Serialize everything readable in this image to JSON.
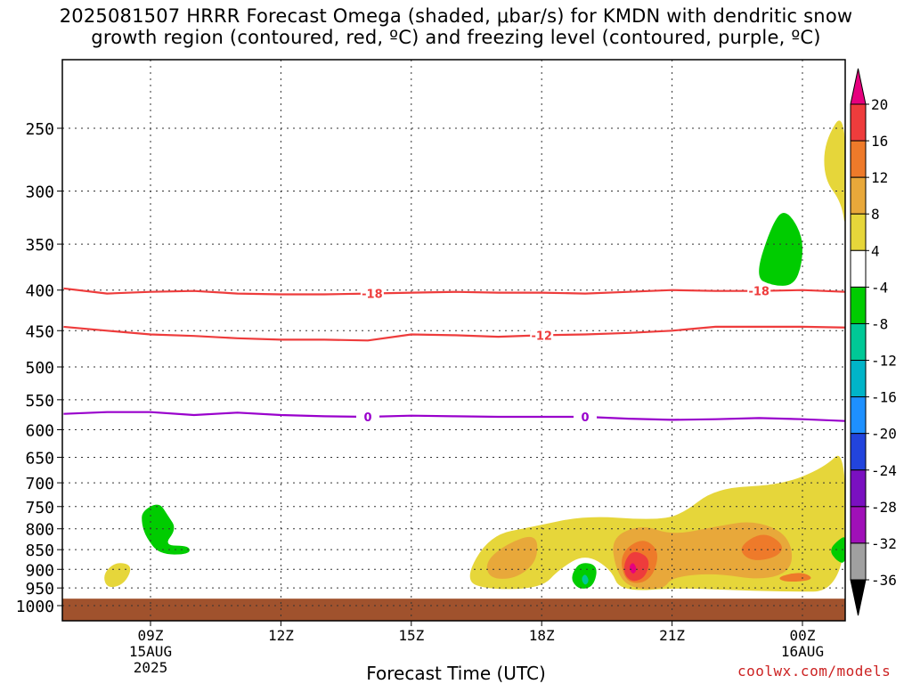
{
  "title": {
    "line1": "2025081507 HRRR Forecast Omega (shaded, μbar/s) for KMDN with dendritic snow",
    "line2": "growth region (contoured, red, ºC) and freezing level (contoured, purple, ºC)"
  },
  "credit": "coolwx.com/models",
  "chart_data": {
    "type": "heatmap",
    "title": "2025081507 HRRR Forecast Omega (shaded, μbar/s) for KMDN with dendritic snow growth region (contoured, red, ºC) and freezing level (contoured, purple, ºC)",
    "xlabel": "Forecast Time (UTC)",
    "ylabel": "",
    "x_range_hours_utc": [
      7,
      25
    ],
    "y_range_mb": [
      1000,
      200
    ],
    "y_scale": "log-pressure",
    "grid": true,
    "x_ticks": [
      {
        "hour": 9,
        "label": "09Z",
        "sub1": "15AUG",
        "sub2": "2025"
      },
      {
        "hour": 12,
        "label": "12Z",
        "sub1": "",
        "sub2": ""
      },
      {
        "hour": 15,
        "label": "15Z",
        "sub1": "",
        "sub2": ""
      },
      {
        "hour": 18,
        "label": "18Z",
        "sub1": "",
        "sub2": ""
      },
      {
        "hour": 21,
        "label": "21Z",
        "sub1": "",
        "sub2": ""
      },
      {
        "hour": 24,
        "label": "00Z",
        "sub1": "16AUG",
        "sub2": ""
      }
    ],
    "y_ticks": [
      250,
      300,
      350,
      400,
      450,
      500,
      550,
      600,
      650,
      700,
      750,
      800,
      850,
      900,
      950,
      1000
    ],
    "colorbar": {
      "labels": [
        "20",
        "16",
        "12",
        "8",
        "4",
        "-4",
        "-8",
        "-12",
        "-16",
        "-20",
        "-24",
        "-28",
        "-32",
        "-36"
      ],
      "colors": [
        "#e6007e",
        "#ee3c3c",
        "#ee7a2a",
        "#e8a83a",
        "#e6d63a",
        "#ffffff",
        "#00cc00",
        "#00c896",
        "#00b4c8",
        "#1e90ff",
        "#2244dd",
        "#7a10c0",
        "#a010b8",
        "#a0a0a0",
        "#000000"
      ]
    },
    "contours": [
      {
        "name": "-18",
        "color": "#ee3c3c",
        "labels_at_hours": [
          14.1,
          23.0
        ],
        "points": [
          [
            7,
            398
          ],
          [
            8,
            404
          ],
          [
            9,
            402
          ],
          [
            10,
            401
          ],
          [
            11,
            404
          ],
          [
            12,
            405
          ],
          [
            13,
            405
          ],
          [
            14,
            404
          ],
          [
            15,
            403
          ],
          [
            16,
            402
          ],
          [
            17,
            403
          ],
          [
            18,
            403
          ],
          [
            19,
            404
          ],
          [
            20,
            402
          ],
          [
            21,
            400
          ],
          [
            22,
            401
          ],
          [
            23,
            401
          ],
          [
            24,
            400
          ],
          [
            25,
            402
          ]
        ]
      },
      {
        "name": "-12",
        "color": "#ee3c3c",
        "labels_at_hours": [
          18.0
        ],
        "points": [
          [
            7,
            445
          ],
          [
            8,
            450
          ],
          [
            9,
            455
          ],
          [
            10,
            457
          ],
          [
            11,
            460
          ],
          [
            12,
            462
          ],
          [
            13,
            462
          ],
          [
            14,
            463
          ],
          [
            15,
            455
          ],
          [
            16,
            456
          ],
          [
            17,
            458
          ],
          [
            18,
            456
          ],
          [
            19,
            455
          ],
          [
            20,
            453
          ],
          [
            21,
            450
          ],
          [
            22,
            445
          ],
          [
            23,
            445
          ],
          [
            24,
            445
          ],
          [
            25,
            446
          ]
        ]
      },
      {
        "name": "0",
        "color": "#9900cc",
        "labels_at_hours": [
          14.0,
          19.0
        ],
        "points": [
          [
            7,
            573
          ],
          [
            8,
            570
          ],
          [
            9,
            570
          ],
          [
            10,
            575
          ],
          [
            11,
            571
          ],
          [
            12,
            575
          ],
          [
            13,
            577
          ],
          [
            14,
            578
          ],
          [
            15,
            576
          ],
          [
            16,
            577
          ],
          [
            17,
            578
          ],
          [
            18,
            578
          ],
          [
            19,
            578
          ],
          [
            20,
            581
          ],
          [
            21,
            583
          ],
          [
            22,
            582
          ],
          [
            23,
            580
          ],
          [
            24,
            582
          ],
          [
            25,
            585
          ]
        ]
      }
    ],
    "shaded_regions": [
      {
        "color": "#e6d63a",
        "points": [
          [
            7.9,
            913
          ],
          [
            8.2,
            880
          ],
          [
            8.6,
            890
          ],
          [
            8.4,
            940
          ],
          [
            8.0,
            952
          ]
        ]
      },
      {
        "color": "#00cc00",
        "points": [
          [
            8.8,
            760
          ],
          [
            9.2,
            740
          ],
          [
            9.4,
            770
          ],
          [
            9.6,
            800
          ],
          [
            9.3,
            840
          ],
          [
            9.9,
            840
          ],
          [
            9.9,
            862
          ],
          [
            9.2,
            862
          ],
          [
            8.9,
            820
          ],
          [
            8.8,
            790
          ]
        ]
      },
      {
        "color": "#e6d63a",
        "points": [
          [
            16.2,
            930
          ],
          [
            16.8,
            815
          ],
          [
            17.8,
            795
          ],
          [
            19.0,
            770
          ],
          [
            20.5,
            780
          ],
          [
            21.2,
            770
          ],
          [
            22.0,
            710
          ],
          [
            23.5,
            705
          ],
          [
            24.5,
            670
          ],
          [
            25.0,
            630
          ],
          [
            25.0,
            960
          ],
          [
            23.5,
            960
          ],
          [
            22.2,
            955
          ],
          [
            21.2,
            950
          ],
          [
            19.8,
            960
          ],
          [
            19.6,
            900
          ],
          [
            19.0,
            860
          ],
          [
            18.4,
            900
          ],
          [
            18.0,
            950
          ],
          [
            16.8,
            955
          ]
        ]
      },
      {
        "color": "#e8a83a",
        "points": [
          [
            16.7,
            880
          ],
          [
            17.2,
            835
          ],
          [
            17.9,
            810
          ],
          [
            17.9,
            880
          ],
          [
            17.4,
            925
          ],
          [
            16.8,
            925
          ]
        ]
      },
      {
        "color": "#e8a83a",
        "points": [
          [
            19.6,
            820
          ],
          [
            20.3,
            790
          ],
          [
            21.0,
            815
          ],
          [
            22.0,
            795
          ],
          [
            22.9,
            780
          ],
          [
            23.7,
            815
          ],
          [
            23.8,
            900
          ],
          [
            23.1,
            930
          ],
          [
            22.0,
            910
          ],
          [
            21.0,
            920
          ],
          [
            20.8,
            955
          ],
          [
            20.0,
            950
          ],
          [
            19.7,
            900
          ]
        ]
      },
      {
        "color": "#ee7a2a",
        "points": [
          [
            19.8,
            860
          ],
          [
            20.3,
            820
          ],
          [
            20.7,
            850
          ],
          [
            20.6,
            910
          ],
          [
            20.3,
            940
          ],
          [
            19.9,
            930
          ]
        ]
      },
      {
        "color": "#ee7a2a",
        "points": [
          [
            22.5,
            845
          ],
          [
            23.1,
            805
          ],
          [
            23.6,
            840
          ],
          [
            23.4,
            870
          ],
          [
            22.8,
            880
          ]
        ]
      },
      {
        "color": "#ee7a2a",
        "points": [
          [
            23.4,
            920
          ],
          [
            24.0,
            905
          ],
          [
            24.3,
            928
          ],
          [
            23.6,
            935
          ]
        ]
      },
      {
        "color": "#ee3c3c",
        "points": [
          [
            19.9,
            880
          ],
          [
            20.1,
            850
          ],
          [
            20.5,
            870
          ],
          [
            20.4,
            920
          ],
          [
            20.1,
            935
          ],
          [
            19.9,
            915
          ]
        ]
      },
      {
        "color": "#e6007e",
        "points": [
          [
            20.0,
            895
          ],
          [
            20.1,
            880
          ],
          [
            20.2,
            900
          ],
          [
            20.1,
            915
          ]
        ]
      },
      {
        "color": "#00cc00",
        "points": [
          [
            18.7,
            910
          ],
          [
            18.9,
            880
          ],
          [
            19.3,
            890
          ],
          [
            19.2,
            945
          ],
          [
            18.9,
            955
          ],
          [
            18.7,
            935
          ]
        ]
      },
      {
        "color": "#00c896",
        "points": [
          [
            18.9,
            925
          ],
          [
            19.0,
            910
          ],
          [
            19.1,
            930
          ],
          [
            19.0,
            945
          ]
        ]
      },
      {
        "color": "#00cc00",
        "points": [
          [
            24.6,
            850
          ],
          [
            24.9,
            820
          ],
          [
            25.0,
            820
          ],
          [
            25.0,
            885
          ],
          [
            24.8,
            880
          ]
        ]
      },
      {
        "color": "#00cc00",
        "points": [
          [
            22.9,
            385
          ],
          [
            23.3,
            330
          ],
          [
            23.6,
            315
          ],
          [
            24.0,
            340
          ],
          [
            24.0,
            370
          ],
          [
            23.8,
            395
          ],
          [
            23.3,
            395
          ]
        ]
      },
      {
        "color": "#e6d63a",
        "points": [
          [
            24.5,
            260
          ],
          [
            25.0,
            235
          ],
          [
            25.0,
            340
          ],
          [
            24.9,
            310
          ],
          [
            24.5,
            290
          ]
        ]
      }
    ],
    "ground": {
      "color": "#a0522d",
      "from_mb": 980,
      "to_mb": 1030
    }
  }
}
